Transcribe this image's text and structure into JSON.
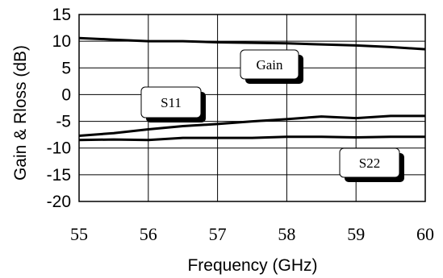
{
  "chart_data": {
    "type": "line",
    "xlabel": "Frequency (GHz)",
    "ylabel": "Gain & Rloss (dB)",
    "xlim": [
      55,
      60
    ],
    "ylim": [
      -20,
      15
    ],
    "x_ticks": [
      "55",
      "56",
      "57",
      "58",
      "59",
      "60"
    ],
    "y_ticks": [
      "15",
      "10",
      "5",
      "0",
      "-5",
      "-10",
      "-15",
      "-20"
    ],
    "grid": true,
    "legend": "none",
    "series": [
      {
        "name": "Gain",
        "x": [
          55,
          55.5,
          56,
          56.5,
          57,
          57.5,
          58,
          58.5,
          59,
          59.5,
          60
        ],
        "y": [
          10.6,
          10.3,
          10.0,
          10.0,
          9.8,
          9.7,
          9.6,
          9.4,
          9.2,
          8.9,
          8.5
        ]
      },
      {
        "name": "S11",
        "x": [
          55,
          55.5,
          56,
          56.5,
          57,
          57.5,
          58,
          58.5,
          59,
          59.5,
          60
        ],
        "y": [
          -7.7,
          -7.2,
          -6.5,
          -5.9,
          -5.5,
          -5.0,
          -4.6,
          -4.1,
          -4.4,
          -4.0,
          -4.0
        ]
      },
      {
        "name": "S22",
        "x": [
          55,
          55.5,
          56,
          56.5,
          57,
          57.5,
          58,
          58.5,
          59,
          59.5,
          60
        ],
        "y": [
          -8.5,
          -8.4,
          -8.5,
          -8.1,
          -8.1,
          -8.1,
          -7.9,
          -7.9,
          -8.0,
          -7.9,
          -7.9
        ]
      }
    ],
    "annotations": [
      {
        "text": "Gain",
        "series": "Gain"
      },
      {
        "text": "S11",
        "series": "S11"
      },
      {
        "text": "S22",
        "series": "S22"
      }
    ],
    "colors": {
      "line": "#000000",
      "grid": "#000000",
      "background": "#ffffff"
    }
  }
}
